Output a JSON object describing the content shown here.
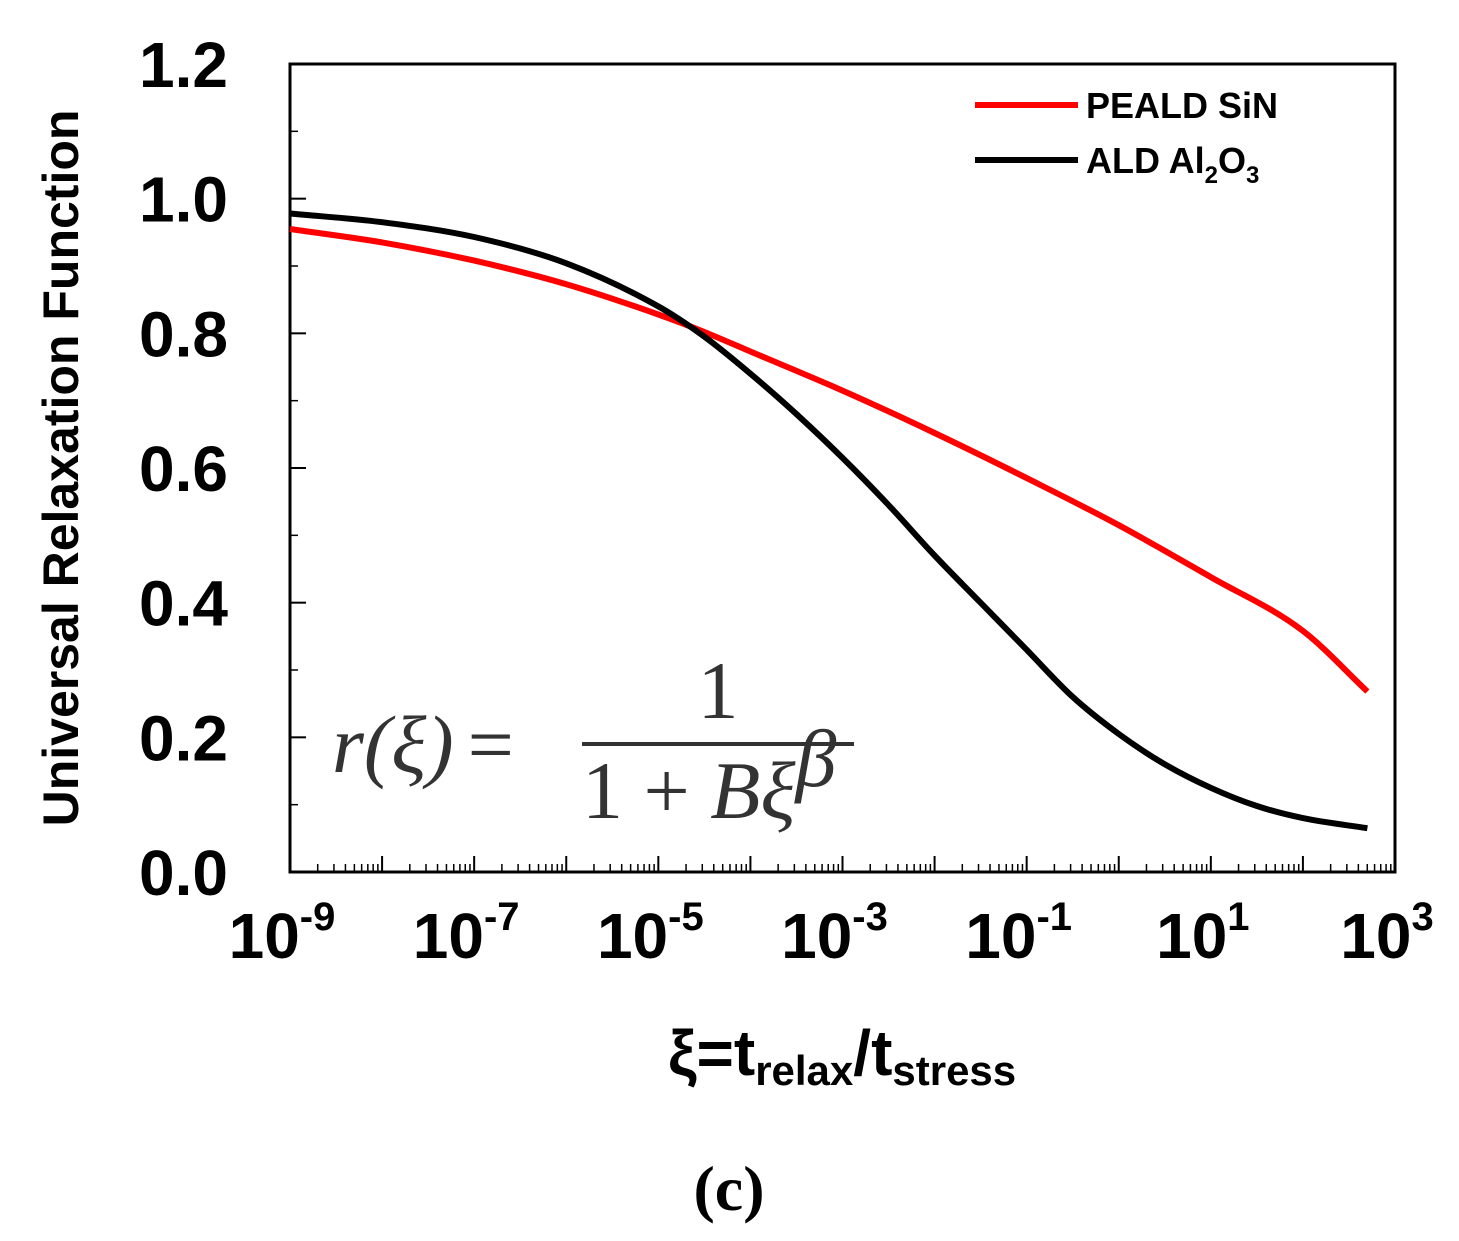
{
  "chart_data": {
    "type": "line",
    "title": "",
    "xscale": "log",
    "xlim_exponent": [
      -9,
      3
    ],
    "ylim": [
      0.0,
      1.2
    ],
    "ylabel": "Universal Relaxation Function",
    "xlabel": {
      "prefix": "ξ=t",
      "sub1": "relax",
      "mid": "/t",
      "sub2": "stress"
    },
    "y_ticks": [
      "0.0",
      "0.2",
      "0.4",
      "0.6",
      "0.8",
      "1.0",
      "1.2"
    ],
    "x_ticks": [
      {
        "base": "10",
        "exp": "-9"
      },
      {
        "base": "10",
        "exp": "-7"
      },
      {
        "base": "10",
        "exp": "-5"
      },
      {
        "base": "10",
        "exp": "-3"
      },
      {
        "base": "10",
        "exp": "-1"
      },
      {
        "base": "10",
        "exp": "1"
      },
      {
        "base": "10",
        "exp": "3"
      }
    ],
    "legend_position": "top-right",
    "series": [
      {
        "name": "PEALD SiN",
        "color": "#ff0000",
        "x_exp": [
          -9,
          -8,
          -7,
          -6,
          -5,
          -4.5,
          -4,
          -3,
          -2,
          -1,
          0,
          1,
          2,
          2.7
        ],
        "y": [
          0.955,
          0.935,
          0.908,
          0.873,
          0.828,
          0.802,
          0.773,
          0.715,
          0.652,
          0.585,
          0.515,
          0.438,
          0.358,
          0.268
        ]
      },
      {
        "name_main": "ALD Al",
        "name_sub1": "2",
        "name_mid": "O",
        "name_sub2": "3",
        "color": "#000000",
        "x_exp": [
          -9,
          -8,
          -7,
          -6,
          -5,
          -4.5,
          -4,
          -3.5,
          -3,
          -2.5,
          -2,
          -1.5,
          -1,
          -0.5,
          0,
          0.5,
          1,
          1.5,
          2,
          2.7
        ],
        "y": [
          0.978,
          0.965,
          0.943,
          0.904,
          0.84,
          0.795,
          0.74,
          0.68,
          0.615,
          0.545,
          0.47,
          0.4,
          0.33,
          0.26,
          0.205,
          0.16,
          0.125,
          0.098,
          0.08,
          0.065
        ]
      }
    ],
    "annotation": {
      "lhs_var": "r",
      "lhs_arg": "(ξ)",
      "eq": "=",
      "numerator": "1",
      "denominator_one": "1 + ",
      "denominator_var": "Bξ",
      "denominator_exp": "β"
    }
  },
  "panel_label": "(c)"
}
